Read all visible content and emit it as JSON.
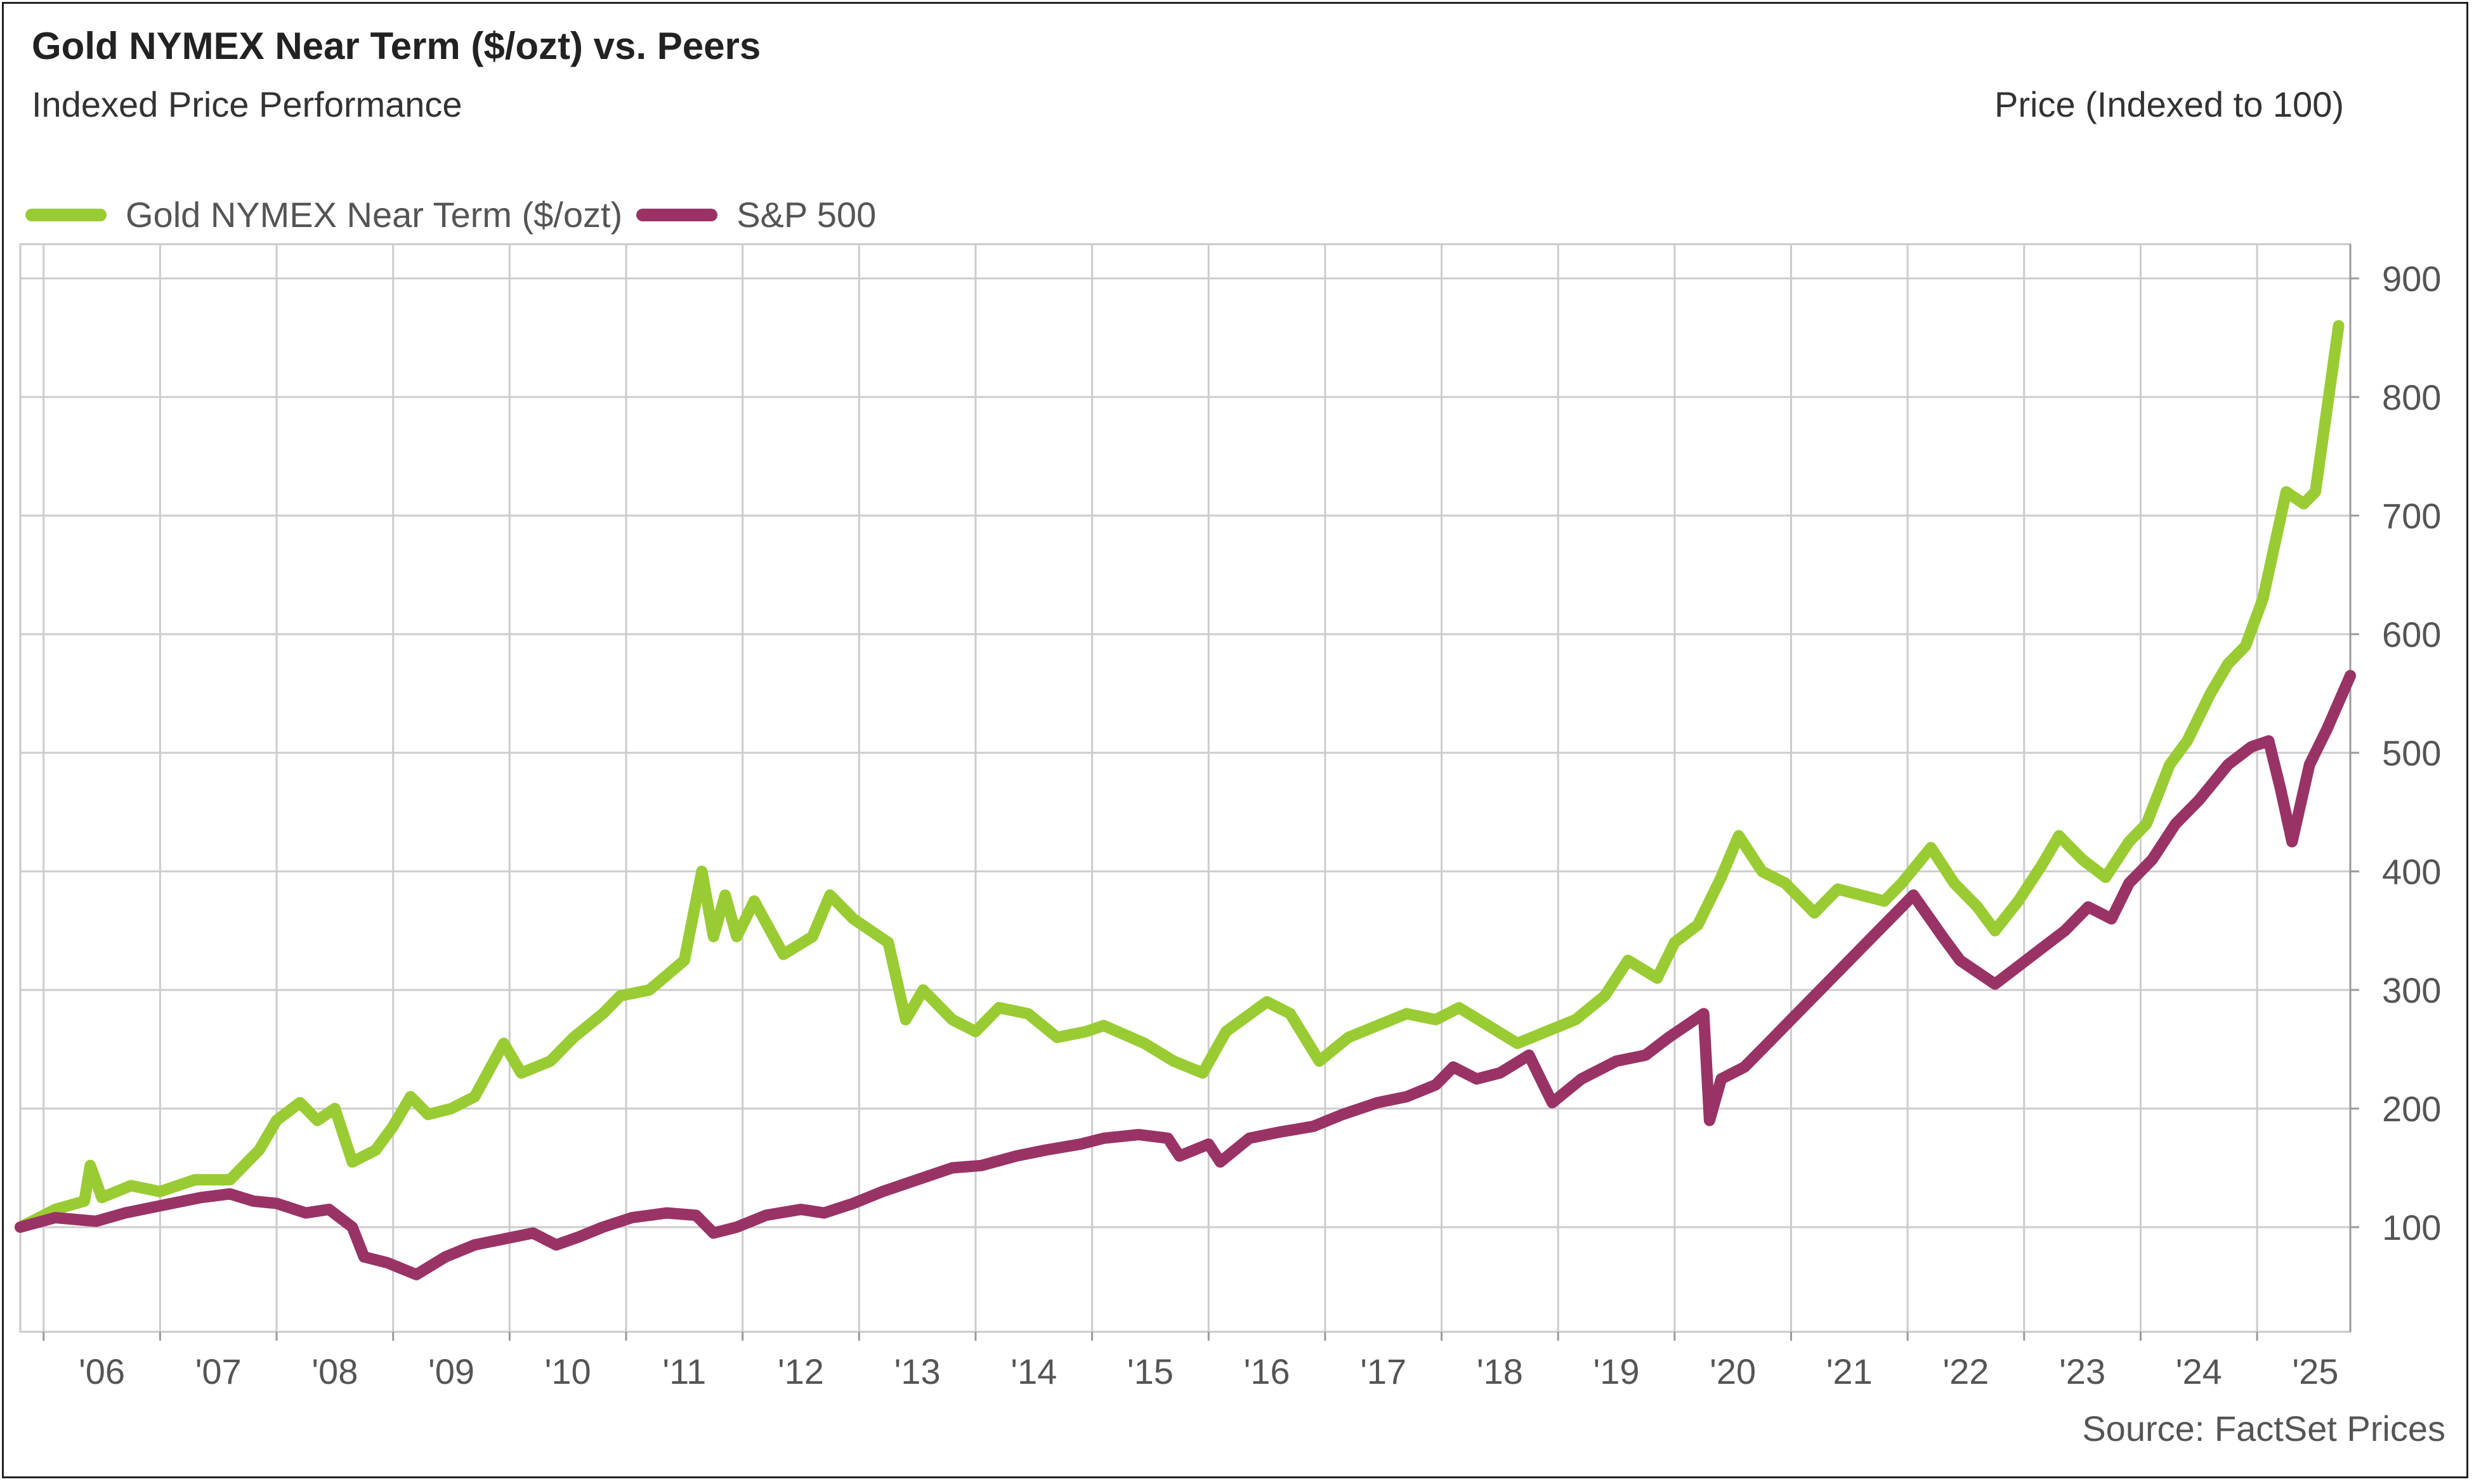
{
  "header": {
    "title": "Gold NYMEX Near Term ($/ozt) vs. Peers",
    "subtitle": "Indexed Price Performance",
    "y_axis_title": "Price (Indexed to 100)"
  },
  "footer": {
    "source": "Source: FactSet Prices"
  },
  "chart_data": {
    "type": "line",
    "title": "Gold NYMEX Near Term ($/ozt) vs. Peers",
    "subtitle": "Indexed Price Performance",
    "ylabel": "Price (Indexed to 100)",
    "xlabel": "",
    "ylim": [
      0,
      900
    ],
    "xlim": [
      2005.8,
      2025.8
    ],
    "y_ticks": [
      100,
      200,
      300,
      400,
      500,
      600,
      700,
      800,
      900
    ],
    "x_ticks": [
      {
        "x": 2006.5,
        "label": "'06"
      },
      {
        "x": 2007.5,
        "label": "'07"
      },
      {
        "x": 2008.5,
        "label": "'08"
      },
      {
        "x": 2009.5,
        "label": "'09"
      },
      {
        "x": 2010.5,
        "label": "'10"
      },
      {
        "x": 2011.5,
        "label": "'11"
      },
      {
        "x": 2012.5,
        "label": "'12"
      },
      {
        "x": 2013.5,
        "label": "'13"
      },
      {
        "x": 2014.5,
        "label": "'14"
      },
      {
        "x": 2015.5,
        "label": "'15"
      },
      {
        "x": 2016.5,
        "label": "'16"
      },
      {
        "x": 2017.5,
        "label": "'17"
      },
      {
        "x": 2018.5,
        "label": "'18"
      },
      {
        "x": 2019.5,
        "label": "'19"
      },
      {
        "x": 2020.5,
        "label": "'20"
      },
      {
        "x": 2021.5,
        "label": "'21"
      },
      {
        "x": 2022.5,
        "label": "'22"
      },
      {
        "x": 2023.5,
        "label": "'23"
      },
      {
        "x": 2024.5,
        "label": "'24"
      },
      {
        "x": 2025.5,
        "label": "'25"
      }
    ],
    "grid": true,
    "legend_position": "top-left",
    "series": [
      {
        "name": "Gold NYMEX Near Term ($/ozt)",
        "color": "#99CC33",
        "points": [
          [
            2005.8,
            100
          ],
          [
            2006.1,
            115
          ],
          [
            2006.35,
            122
          ],
          [
            2006.4,
            152
          ],
          [
            2006.5,
            125
          ],
          [
            2006.75,
            135
          ],
          [
            2007.0,
            130
          ],
          [
            2007.3,
            140
          ],
          [
            2007.6,
            140
          ],
          [
            2007.85,
            165
          ],
          [
            2008.0,
            190
          ],
          [
            2008.2,
            205
          ],
          [
            2008.35,
            190
          ],
          [
            2008.5,
            200
          ],
          [
            2008.65,
            155
          ],
          [
            2008.85,
            165
          ],
          [
            2009.0,
            185
          ],
          [
            2009.15,
            210
          ],
          [
            2009.3,
            195
          ],
          [
            2009.5,
            200
          ],
          [
            2009.7,
            210
          ],
          [
            2009.95,
            255
          ],
          [
            2010.1,
            230
          ],
          [
            2010.35,
            240
          ],
          [
            2010.55,
            260
          ],
          [
            2010.8,
            280
          ],
          [
            2010.95,
            295
          ],
          [
            2011.2,
            300
          ],
          [
            2011.5,
            325
          ],
          [
            2011.65,
            400
          ],
          [
            2011.75,
            345
          ],
          [
            2011.85,
            380
          ],
          [
            2011.95,
            345
          ],
          [
            2012.1,
            375
          ],
          [
            2012.35,
            330
          ],
          [
            2012.6,
            345
          ],
          [
            2012.75,
            380
          ],
          [
            2012.95,
            360
          ],
          [
            2013.25,
            340
          ],
          [
            2013.4,
            275
          ],
          [
            2013.55,
            300
          ],
          [
            2013.8,
            275
          ],
          [
            2014.0,
            265
          ],
          [
            2014.2,
            285
          ],
          [
            2014.45,
            280
          ],
          [
            2014.7,
            260
          ],
          [
            2014.95,
            265
          ],
          [
            2015.1,
            270
          ],
          [
            2015.45,
            255
          ],
          [
            2015.7,
            240
          ],
          [
            2015.95,
            230
          ],
          [
            2016.15,
            265
          ],
          [
            2016.5,
            290
          ],
          [
            2016.7,
            280
          ],
          [
            2016.95,
            240
          ],
          [
            2017.2,
            260
          ],
          [
            2017.45,
            270
          ],
          [
            2017.7,
            280
          ],
          [
            2017.95,
            275
          ],
          [
            2018.15,
            285
          ],
          [
            2018.4,
            270
          ],
          [
            2018.65,
            255
          ],
          [
            2018.9,
            265
          ],
          [
            2019.15,
            275
          ],
          [
            2019.4,
            295
          ],
          [
            2019.6,
            325
          ],
          [
            2019.85,
            310
          ],
          [
            2020.0,
            340
          ],
          [
            2020.2,
            355
          ],
          [
            2020.4,
            395
          ],
          [
            2020.55,
            430
          ],
          [
            2020.75,
            400
          ],
          [
            2020.95,
            390
          ],
          [
            2021.2,
            365
          ],
          [
            2021.4,
            385
          ],
          [
            2021.6,
            380
          ],
          [
            2021.8,
            375
          ],
          [
            2021.95,
            390
          ],
          [
            2022.2,
            420
          ],
          [
            2022.4,
            390
          ],
          [
            2022.6,
            370
          ],
          [
            2022.75,
            350
          ],
          [
            2022.95,
            375
          ],
          [
            2023.15,
            405
          ],
          [
            2023.3,
            430
          ],
          [
            2023.5,
            410
          ],
          [
            2023.7,
            395
          ],
          [
            2023.9,
            425
          ],
          [
            2024.05,
            440
          ],
          [
            2024.25,
            490
          ],
          [
            2024.4,
            510
          ],
          [
            2024.6,
            550
          ],
          [
            2024.75,
            575
          ],
          [
            2024.9,
            590
          ],
          [
            2025.05,
            630
          ],
          [
            2025.25,
            720
          ],
          [
            2025.4,
            710
          ],
          [
            2025.5,
            720
          ],
          [
            2025.6,
            790
          ],
          [
            2025.7,
            860
          ]
        ]
      },
      {
        "name": "S&P 500",
        "color": "#993366",
        "points": [
          [
            2005.8,
            100
          ],
          [
            2006.1,
            108
          ],
          [
            2006.45,
            105
          ],
          [
            2006.7,
            112
          ],
          [
            2007.0,
            118
          ],
          [
            2007.35,
            125
          ],
          [
            2007.6,
            128
          ],
          [
            2007.8,
            122
          ],
          [
            2008.0,
            120
          ],
          [
            2008.25,
            112
          ],
          [
            2008.45,
            115
          ],
          [
            2008.65,
            100
          ],
          [
            2008.75,
            75
          ],
          [
            2008.95,
            70
          ],
          [
            2009.2,
            60
          ],
          [
            2009.45,
            75
          ],
          [
            2009.7,
            85
          ],
          [
            2009.95,
            90
          ],
          [
            2010.2,
            95
          ],
          [
            2010.4,
            85
          ],
          [
            2010.6,
            92
          ],
          [
            2010.8,
            100
          ],
          [
            2011.05,
            108
          ],
          [
            2011.35,
            112
          ],
          [
            2011.6,
            110
          ],
          [
            2011.75,
            95
          ],
          [
            2011.95,
            100
          ],
          [
            2012.2,
            110
          ],
          [
            2012.5,
            115
          ],
          [
            2012.7,
            112
          ],
          [
            2012.95,
            120
          ],
          [
            2013.2,
            130
          ],
          [
            2013.5,
            140
          ],
          [
            2013.8,
            150
          ],
          [
            2014.05,
            152
          ],
          [
            2014.35,
            160
          ],
          [
            2014.6,
            165
          ],
          [
            2014.9,
            170
          ],
          [
            2015.1,
            175
          ],
          [
            2015.4,
            178
          ],
          [
            2015.65,
            175
          ],
          [
            2015.75,
            160
          ],
          [
            2016.0,
            170
          ],
          [
            2016.1,
            155
          ],
          [
            2016.35,
            175
          ],
          [
            2016.6,
            180
          ],
          [
            2016.9,
            185
          ],
          [
            2017.15,
            195
          ],
          [
            2017.45,
            205
          ],
          [
            2017.7,
            210
          ],
          [
            2017.95,
            220
          ],
          [
            2018.1,
            235
          ],
          [
            2018.3,
            225
          ],
          [
            2018.5,
            230
          ],
          [
            2018.75,
            245
          ],
          [
            2018.85,
            225
          ],
          [
            2018.95,
            205
          ],
          [
            2019.2,
            225
          ],
          [
            2019.5,
            240
          ],
          [
            2019.75,
            245
          ],
          [
            2019.95,
            260
          ],
          [
            2020.1,
            270
          ],
          [
            2020.25,
            280
          ],
          [
            2020.3,
            190
          ],
          [
            2020.4,
            225
          ],
          [
            2020.6,
            235
          ],
          [
            2020.8,
            255
          ],
          [
            2020.95,
            270
          ],
          [
            2021.2,
            295
          ],
          [
            2021.45,
            320
          ],
          [
            2021.7,
            345
          ],
          [
            2021.9,
            365
          ],
          [
            2022.05,
            380
          ],
          [
            2022.3,
            345
          ],
          [
            2022.45,
            325
          ],
          [
            2022.6,
            315
          ],
          [
            2022.75,
            305
          ],
          [
            2022.95,
            320
          ],
          [
            2023.15,
            335
          ],
          [
            2023.35,
            350
          ],
          [
            2023.55,
            370
          ],
          [
            2023.75,
            360
          ],
          [
            2023.9,
            390
          ],
          [
            2024.1,
            410
          ],
          [
            2024.3,
            440
          ],
          [
            2024.5,
            460
          ],
          [
            2024.75,
            490
          ],
          [
            2024.95,
            505
          ],
          [
            2025.1,
            510
          ],
          [
            2025.2,
            470
          ],
          [
            2025.3,
            425
          ],
          [
            2025.45,
            490
          ],
          [
            2025.6,
            520
          ],
          [
            2025.8,
            565
          ]
        ]
      }
    ]
  }
}
